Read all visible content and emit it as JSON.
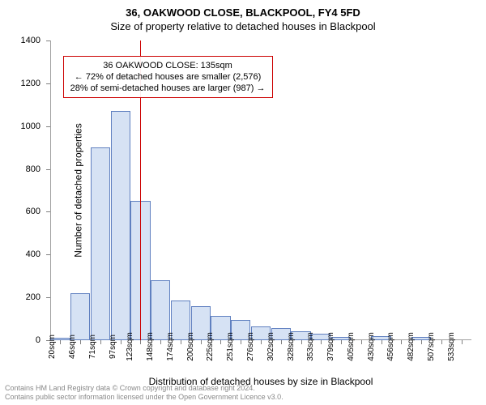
{
  "title": "36, OAKWOOD CLOSE, BLACKPOOL, FY4 5FD",
  "subtitle": "Size of property relative to detached houses in Blackpool",
  "y_axis": {
    "title": "Number of detached properties",
    "min": 0,
    "max": 1400,
    "ticks": [
      0,
      200,
      400,
      600,
      800,
      1000,
      1200,
      1400
    ]
  },
  "x_axis": {
    "title": "Distribution of detached houses by size in Blackpool",
    "labels": [
      "20sqm",
      "46sqm",
      "71sqm",
      "97sqm",
      "123sqm",
      "148sqm",
      "174sqm",
      "200sqm",
      "225sqm",
      "251sqm",
      "276sqm",
      "302sqm",
      "328sqm",
      "353sqm",
      "379sqm",
      "405sqm",
      "430sqm",
      "456sqm",
      "482sqm",
      "507sqm",
      "533sqm"
    ]
  },
  "bars": {
    "values": [
      12,
      220,
      900,
      1070,
      650,
      280,
      185,
      160,
      115,
      95,
      65,
      55,
      40,
      30,
      15,
      0,
      18,
      0,
      15,
      0,
      0
    ],
    "fill_color": "#d6e2f4",
    "border_color": "#6080c0",
    "width_ratio": 0.98
  },
  "reference_line": {
    "position_index": 4.5,
    "color": "#cc0000"
  },
  "info_box": {
    "line1": "36 OAKWOOD CLOSE: 135sqm",
    "line2": "← 72% of detached houses are smaller (2,576)",
    "line3": "28% of semi-detached houses are larger (987) →",
    "border_color": "#cc0000",
    "left_pct": 3,
    "top_pct": 5,
    "font_size": 11
  },
  "footer": {
    "line1": "Contains HM Land Registry data © Crown copyright and database right 2024.",
    "line2": "Contains public sector information licensed under the Open Government Licence v3.0."
  },
  "colors": {
    "background": "#ffffff",
    "axis": "#a0a0a0",
    "text": "#000000"
  }
}
